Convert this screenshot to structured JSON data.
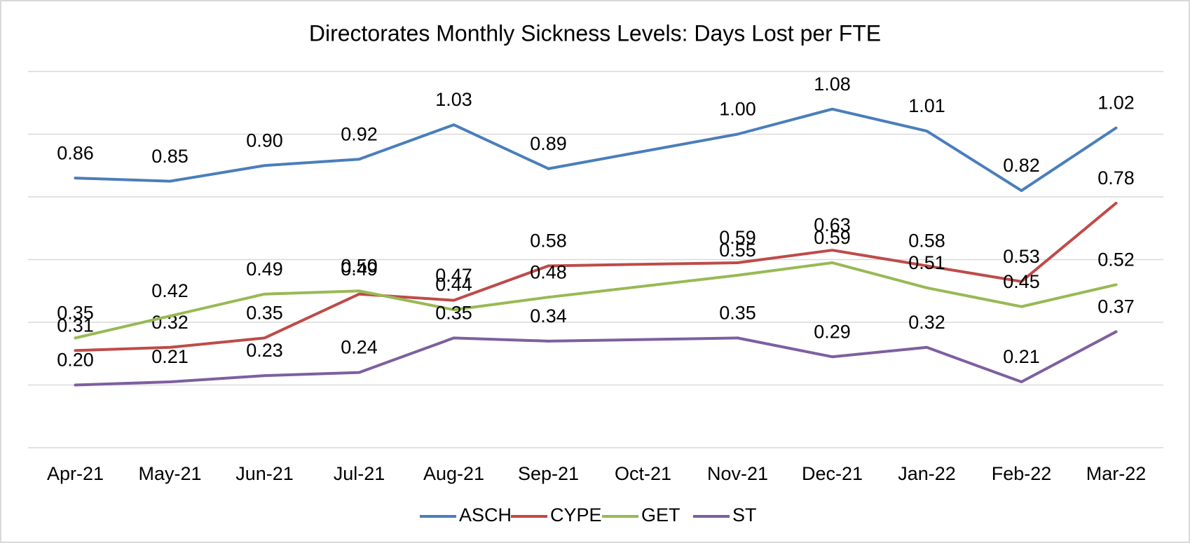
{
  "chart_data": {
    "type": "line",
    "title": "Directorates Monthly Sickness Levels: Days Lost per FTE",
    "categories": [
      "Apr-21",
      "May-21",
      "Jun-21",
      "Jul-21",
      "Aug-21",
      "Sep-21",
      "Oct-21",
      "Nov-21",
      "Dec-21",
      "Jan-22",
      "Feb-22",
      "Mar-22"
    ],
    "series": [
      {
        "name": "ASCH",
        "color": "#4a7ebb",
        "values": [
          0.86,
          0.85,
          0.9,
          0.92,
          1.03,
          0.89,
          null,
          1.0,
          1.08,
          1.01,
          0.82,
          1.02
        ],
        "value_labels": [
          "0.86",
          "0.85",
          "0.90",
          "0.92",
          "1.03",
          "0.89",
          null,
          "1.00",
          "1.08",
          "1.01",
          "0.82",
          "1.02"
        ]
      },
      {
        "name": "CYPE",
        "color": "#be4b48",
        "values": [
          0.31,
          0.32,
          0.35,
          0.49,
          0.47,
          0.58,
          null,
          0.59,
          0.63,
          0.58,
          0.53,
          0.78
        ],
        "value_labels": [
          "0.31",
          "0.32",
          "0.35",
          "0.49",
          "0.47",
          "0.58",
          null,
          "0.59",
          "0.63",
          "0.58",
          "0.53",
          "0.78"
        ]
      },
      {
        "name": "GET",
        "color": "#98b954",
        "values": [
          0.35,
          0.42,
          0.49,
          0.5,
          0.44,
          0.48,
          null,
          0.55,
          0.59,
          0.51,
          0.45,
          0.52
        ],
        "value_labels": [
          "0.35",
          "0.42",
          "0.49",
          "0.50",
          "0.44",
          "0.48",
          null,
          "0.55",
          "0.59",
          "0.51",
          "0.45",
          "0.52"
        ]
      },
      {
        "name": "ST",
        "color": "#7d5fa0",
        "values": [
          0.2,
          0.21,
          0.23,
          0.24,
          0.35,
          0.34,
          null,
          0.35,
          0.29,
          0.32,
          0.21,
          0.37
        ],
        "value_labels": [
          "0.20",
          "0.21",
          "0.23",
          "0.24",
          "0.35",
          "0.34",
          null,
          "0.35",
          "0.29",
          "0.32",
          "0.21",
          "0.37"
        ]
      }
    ],
    "ylim": [
      0,
      1.2
    ],
    "yticks": [
      0,
      0.2,
      0.4,
      0.6,
      0.8,
      1.0,
      1.2
    ],
    "grid": true,
    "connect_gaps": true,
    "legend": "bottom"
  }
}
